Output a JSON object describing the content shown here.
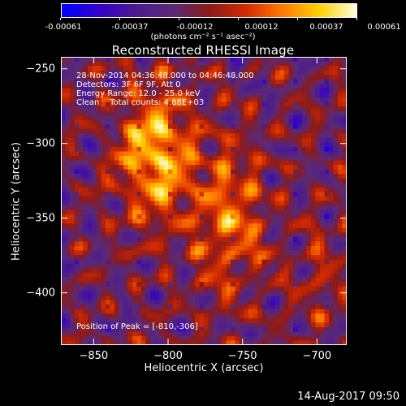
{
  "colorbar": {
    "ticks": [
      "-0.00061",
      "-0.00037",
      "-0.00012",
      "0.00012",
      "0.00037",
      "0.00061"
    ],
    "unit": "(photons cm⁻² s⁻¹ asec⁻²)",
    "colors": [
      "#0000ff",
      "#3300cc",
      "#4b1a8f",
      "#5a2a78",
      "#8a1a1a",
      "#d42a00",
      "#ff7a00",
      "#ffd200",
      "#ffffe0"
    ]
  },
  "chart_data": {
    "type": "heatmap",
    "title": "Reconstructed RHESSI Image",
    "xlabel": "Heliocentric X (arcsec)",
    "ylabel": "Heliocentric Y (arcsec)",
    "xlim": [
      -872,
      -680
    ],
    "ylim": [
      -435,
      -242
    ],
    "value_range": [
      -0.00061,
      0.00061
    ],
    "x_ticks": [
      "-850",
      "-800",
      "-750",
      "-700"
    ],
    "x_tick_values": [
      -850,
      -800,
      -750,
      -700
    ],
    "y_ticks": [
      "-250",
      "-300",
      "-350",
      "-400"
    ],
    "y_tick_values": [
      -250,
      -300,
      -350,
      -400
    ],
    "peak_position": [
      -810,
      -306
    ],
    "annotations": [
      "28-Nov-2014 04:36:48.000 to 04:46:48.000",
      "Detectors: 3F 6F 9F, Att 0",
      "Energy Range: 12.0 - 25.0 keV",
      "Clean    Total counts: 4.88E+03"
    ],
    "peak_label": "Position of Peak = [-810,-306]",
    "grid": false
  },
  "footer": "14-Aug-2017 09:50"
}
